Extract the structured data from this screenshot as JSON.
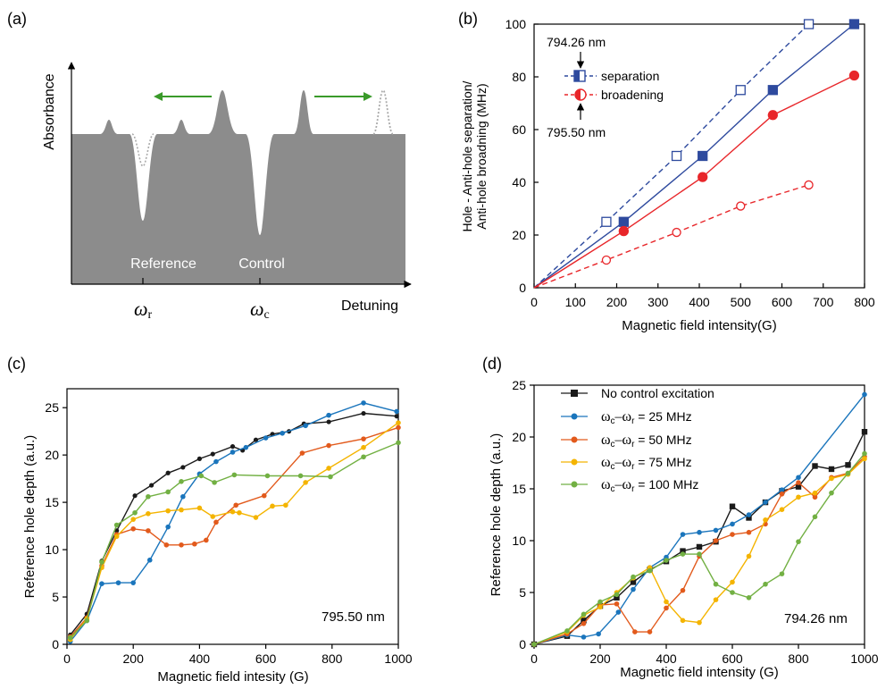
{
  "chart_data": [
    {
      "panel": "(a)",
      "type": "diagram",
      "ylabel": "Absorbance",
      "xlabel": "Detuning",
      "hole_labels": [
        "Reference",
        "Control"
      ],
      "freq_symbols": [
        {
          "base": "ω",
          "sub": "r"
        },
        {
          "base": "ω",
          "sub": "c"
        }
      ],
      "arrow_color": "#3a9a2a",
      "fill_color": "#8c8c8c"
    },
    {
      "panel": "(b)",
      "type": "line",
      "xlabel": "Magnetic field intensity(G)",
      "ylabel": [
        "Hole - Anti-hole separation/",
        "Anti-hole broadning (MHz)"
      ],
      "xlim": [
        0,
        800
      ],
      "ylim": [
        0,
        100
      ],
      "xticks": [
        0,
        100,
        200,
        300,
        400,
        500,
        600,
        700,
        800
      ],
      "yticks": [
        0,
        20,
        40,
        60,
        80,
        100
      ],
      "legend": [
        "separation",
        "broadening"
      ],
      "annotations": [
        "794.26 nm",
        "795.50 nm"
      ],
      "series": [
        {
          "name": "separation",
          "wavelength": "794.26 nm",
          "color": "#2e4a9e",
          "marker": "square",
          "filled": true,
          "dash": false,
          "x": [
            0,
            217,
            408,
            578,
            775
          ],
          "y": [
            0,
            25,
            50,
            75,
            100
          ]
        },
        {
          "name": "separation",
          "wavelength": "795.50 nm",
          "color": "#2e4a9e",
          "marker": "square",
          "filled": false,
          "dash": true,
          "x": [
            0,
            175,
            345,
            500,
            665
          ],
          "y": [
            0,
            25,
            50,
            75,
            100
          ]
        },
        {
          "name": "broadening",
          "wavelength": "794.26 nm",
          "color": "#e8262a",
          "marker": "circle",
          "filled": true,
          "dash": false,
          "x": [
            0,
            217,
            408,
            578,
            775
          ],
          "y": [
            0,
            21.5,
            42,
            65.5,
            80.5
          ]
        },
        {
          "name": "broadening",
          "wavelength": "795.50 nm",
          "color": "#e8262a",
          "marker": "circle",
          "filled": false,
          "dash": true,
          "x": [
            0,
            175,
            345,
            500,
            665
          ],
          "y": [
            0,
            10.5,
            21,
            31,
            39
          ]
        }
      ]
    },
    {
      "panel": "(c)",
      "type": "line",
      "xlabel": "Magnetic field intesity (G)",
      "ylabel": "Reference hole depth (a.u.)",
      "xlim": [
        0,
        1000
      ],
      "ylim": [
        0,
        27
      ],
      "xticks": [
        0,
        200,
        400,
        600,
        800,
        1000
      ],
      "yticks": [
        0,
        5,
        10,
        15,
        20,
        25
      ],
      "annotation": "795.50 nm",
      "series": [
        {
          "color": "#1a1a1a",
          "marker_size": 2.6,
          "x": [
            10,
            60,
            105,
            150,
            205,
            255,
            305,
            350,
            400,
            440,
            500,
            530,
            570,
            620,
            670,
            715,
            790,
            895,
            995
          ],
          "y": [
            1.0,
            3.2,
            8.8,
            12.0,
            15.7,
            16.8,
            18.1,
            18.7,
            19.6,
            20.1,
            20.9,
            20.5,
            21.6,
            22.2,
            22.5,
            23.3,
            23.5,
            24.4,
            24.1
          ]
        },
        {
          "color": "#1a75bc",
          "x": [
            10,
            60,
            105,
            155,
            200,
            250,
            305,
            350,
            400,
            450,
            500,
            540,
            600,
            650,
            720,
            790,
            895,
            995
          ],
          "y": [
            0.3,
            2.5,
            6.4,
            6.5,
            6.5,
            8.9,
            12.4,
            15.6,
            18.0,
            19.3,
            20.3,
            20.8,
            21.8,
            22.3,
            23.1,
            24.2,
            25.5,
            24.6
          ]
        },
        {
          "color": "#e25a1c",
          "x": [
            10,
            60,
            105,
            150,
            200,
            245,
            300,
            345,
            385,
            420,
            450,
            510,
            595,
            710,
            790,
            895,
            1000
          ],
          "y": [
            0.8,
            2.8,
            8.3,
            11.6,
            12.2,
            12.0,
            10.5,
            10.5,
            10.6,
            11.0,
            12.9,
            14.7,
            15.7,
            20.2,
            21.0,
            21.7,
            22.9
          ]
        },
        {
          "color": "#f4b400",
          "x": [
            10,
            60,
            105,
            150,
            200,
            245,
            305,
            345,
            400,
            440,
            500,
            520,
            570,
            620,
            660,
            720,
            790,
            895,
            1000
          ],
          "y": [
            0.5,
            2.7,
            8.1,
            11.4,
            13.2,
            13.8,
            14.1,
            14.2,
            14.4,
            13.5,
            14.0,
            13.9,
            13.4,
            14.6,
            14.7,
            17.1,
            18.6,
            20.8,
            23.4
          ]
        },
        {
          "color": "#72b043",
          "x": [
            10,
            60,
            105,
            150,
            205,
            245,
            305,
            345,
            405,
            445,
            505,
            605,
            705,
            795,
            895,
            1000
          ],
          "y": [
            0.7,
            2.5,
            8.7,
            12.6,
            13.9,
            15.6,
            16.1,
            17.2,
            17.8,
            17.1,
            17.9,
            17.8,
            17.8,
            17.7,
            19.8,
            21.3
          ]
        }
      ]
    },
    {
      "panel": "(d)",
      "type": "line",
      "xlabel": "Magnetic field intensity (G)",
      "ylabel": "Reference hole depth (a.u.)",
      "xlim": [
        0,
        1000
      ],
      "ylim": [
        0,
        25
      ],
      "xticks": [
        0,
        200,
        400,
        600,
        800,
        1000
      ],
      "yticks": [
        0,
        5,
        10,
        15,
        20,
        25
      ],
      "annotation": "794.26 nm",
      "legend": [
        {
          "text": "No control excitation",
          "color": "#1a1a1a",
          "marker": "square"
        },
        {
          "base": "ω",
          "sub1": "c",
          "mid": "–ω",
          "sub2": "r",
          "value": " = 25 MHz",
          "color": "#1a75bc",
          "marker": "circle"
        },
        {
          "base": "ω",
          "sub1": "c",
          "mid": "–ω",
          "sub2": "r",
          "value": " = 50 MHz",
          "color": "#e25a1c",
          "marker": "circle"
        },
        {
          "base": "ω",
          "sub1": "c",
          "mid": "–ω",
          "sub2": "r",
          "value": " = 75 MHz",
          "color": "#f4b400",
          "marker": "circle"
        },
        {
          "base": "ω",
          "sub1": "c",
          "mid": "–ω",
          "sub2": "r",
          "value": " = 100 MHz",
          "color": "#72b043",
          "marker": "circle"
        }
      ],
      "series": [
        {
          "name": "No control excitation",
          "color": "#1a1a1a",
          "marker": "square",
          "x": [
            0,
            100,
            150,
            200,
            250,
            300,
            350,
            400,
            450,
            500,
            550,
            600,
            650,
            700,
            750,
            800,
            850,
            900,
            950,
            1000
          ],
          "y": [
            0,
            0.8,
            2.3,
            3.7,
            4.5,
            6.0,
            7.2,
            8.0,
            9.0,
            9.4,
            9.9,
            13.3,
            12.2,
            13.7,
            14.8,
            15.2,
            17.2,
            16.9,
            17.3,
            20.5
          ]
        },
        {
          "color": "#1a75bc",
          "x": [
            0,
            100,
            150,
            195,
            255,
            300,
            350,
            400,
            450,
            500,
            550,
            600,
            650,
            700,
            750,
            800,
            1000
          ],
          "y": [
            0,
            0.9,
            0.7,
            1.0,
            3.1,
            5.3,
            7.4,
            8.4,
            10.6,
            10.8,
            11.0,
            11.6,
            12.5,
            13.7,
            14.9,
            16.1,
            24.1
          ]
        },
        {
          "color": "#e25a1c",
          "x": [
            0,
            100,
            150,
            200,
            250,
            305,
            350,
            400,
            450,
            500,
            550,
            600,
            650,
            700,
            750,
            800,
            850,
            900,
            950,
            1000
          ],
          "y": [
            0,
            1.0,
            2.0,
            3.8,
            3.9,
            1.2,
            1.2,
            3.5,
            5.2,
            8.5,
            10.0,
            10.6,
            10.8,
            11.6,
            14.5,
            15.6,
            14.2,
            16.1,
            16.5,
            18.1
          ]
        },
        {
          "color": "#f4b400",
          "x": [
            0,
            100,
            150,
            200,
            250,
            300,
            350,
            400,
            450,
            500,
            550,
            600,
            650,
            700,
            750,
            800,
            850,
            900,
            950,
            1000
          ],
          "y": [
            0,
            1.2,
            2.8,
            3.6,
            5.0,
            6.4,
            7.4,
            4.1,
            2.3,
            2.1,
            4.3,
            6.0,
            8.5,
            12.0,
            13.0,
            14.2,
            14.6,
            16.0,
            16.4,
            17.9
          ]
        },
        {
          "color": "#72b043",
          "x": [
            0,
            100,
            150,
            200,
            250,
            300,
            350,
            400,
            450,
            500,
            550,
            600,
            650,
            700,
            750,
            800,
            850,
            900,
            950,
            1000
          ],
          "y": [
            0,
            1.3,
            2.9,
            4.1,
            4.8,
            6.5,
            7.1,
            8.1,
            8.7,
            8.7,
            5.8,
            5.0,
            4.5,
            5.8,
            6.8,
            9.9,
            12.3,
            14.6,
            16.5,
            18.4
          ]
        }
      ]
    }
  ]
}
